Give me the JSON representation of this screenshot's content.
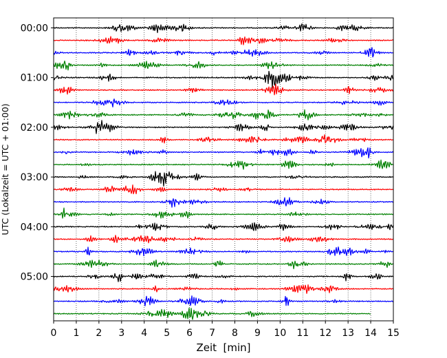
{
  "chart_data": {
    "type": "line",
    "title": "",
    "xlabel": "Zeit  [min]",
    "ylabel": "UTC (Lokalzeit = UTC + 01:00)",
    "xlim": [
      0,
      15
    ],
    "x_ticks": [
      0,
      1,
      2,
      3,
      4,
      5,
      6,
      7,
      8,
      9,
      10,
      11,
      12,
      13,
      14,
      15
    ],
    "y_tick_labels": [
      "00:00",
      "01:00",
      "02:00",
      "03:00",
      "04:00",
      "05:00"
    ],
    "grid": "vertical dotted",
    "trace_colors": [
      "#000000",
      "#ff0000",
      "#0000ff",
      "#008000"
    ],
    "trace_interval_minutes": 15,
    "rows": [
      {
        "start": "00:00",
        "color": "#000000",
        "end_min": 15
      },
      {
        "start": "00:15",
        "color": "#ff0000",
        "end_min": 15
      },
      {
        "start": "00:30",
        "color": "#0000ff",
        "end_min": 15
      },
      {
        "start": "00:45",
        "color": "#008000",
        "end_min": 15
      },
      {
        "start": "01:00",
        "color": "#000000",
        "end_min": 15
      },
      {
        "start": "01:15",
        "color": "#ff0000",
        "end_min": 15
      },
      {
        "start": "01:30",
        "color": "#0000ff",
        "end_min": 15
      },
      {
        "start": "01:45",
        "color": "#008000",
        "end_min": 15
      },
      {
        "start": "02:00",
        "color": "#000000",
        "end_min": 15
      },
      {
        "start": "02:15",
        "color": "#ff0000",
        "end_min": 15
      },
      {
        "start": "02:30",
        "color": "#0000ff",
        "end_min": 15
      },
      {
        "start": "02:45",
        "color": "#008000",
        "end_min": 15
      },
      {
        "start": "03:00",
        "color": "#000000",
        "end_min": 15
      },
      {
        "start": "03:15",
        "color": "#ff0000",
        "end_min": 15
      },
      {
        "start": "03:30",
        "color": "#0000ff",
        "end_min": 15
      },
      {
        "start": "03:45",
        "color": "#008000",
        "end_min": 15
      },
      {
        "start": "04:00",
        "color": "#000000",
        "end_min": 15
      },
      {
        "start": "04:15",
        "color": "#ff0000",
        "end_min": 15
      },
      {
        "start": "04:30",
        "color": "#0000ff",
        "end_min": 15
      },
      {
        "start": "04:45",
        "color": "#008000",
        "end_min": 15
      },
      {
        "start": "05:00",
        "color": "#000000",
        "end_min": 15
      },
      {
        "start": "05:15",
        "color": "#ff0000",
        "end_min": 15
      },
      {
        "start": "05:30",
        "color": "#0000ff",
        "end_min": 15
      },
      {
        "start": "05:45",
        "color": "#008000",
        "end_min": 14
      }
    ]
  }
}
